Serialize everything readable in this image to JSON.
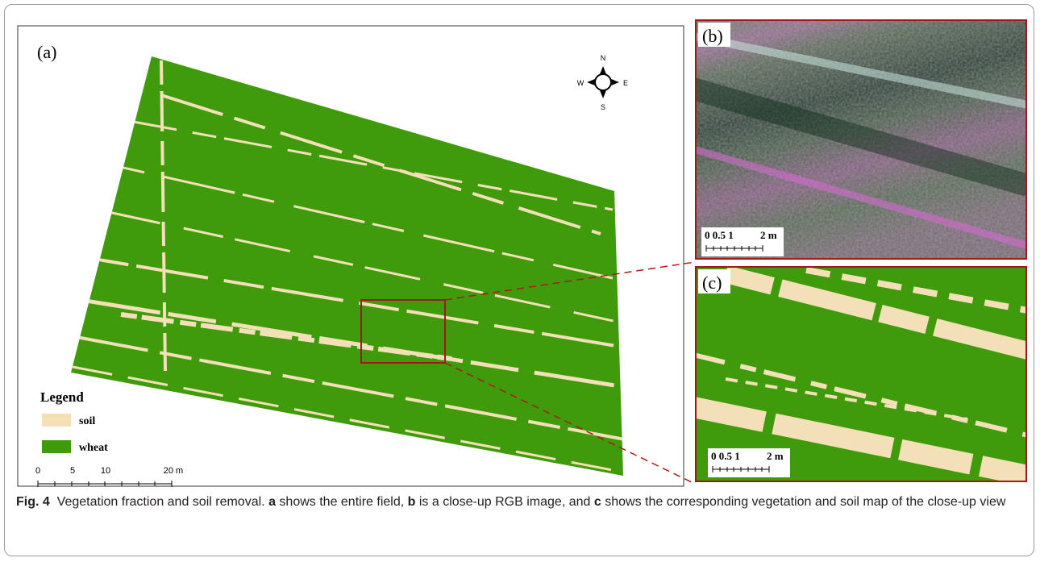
{
  "panel_a": {
    "label": "(a)",
    "compass": {
      "n": "N",
      "s": "S",
      "w": "W",
      "e": "E"
    },
    "legend": {
      "title": "Legend",
      "items": [
        "soil",
        "wheat"
      ]
    },
    "scale": [
      "0",
      "5",
      "10",
      "20 m"
    ]
  },
  "panel_b": {
    "label": "(b)",
    "scale": [
      "0 0.5 1",
      "2 m"
    ]
  },
  "panel_c": {
    "label": "(c)",
    "scale": [
      "0 0.5 1",
      "2 m"
    ]
  },
  "caption": {
    "label": "Fig. 4",
    "text_1": "Vegetation fraction and soil removal.",
    "a": "a",
    "text_2": "shows the entire field,",
    "b": "b",
    "text_3": "is a close-up RGB image, and",
    "c": "c",
    "text_4": "shows the corresponding vegetation and soil map of the close-up view"
  }
}
